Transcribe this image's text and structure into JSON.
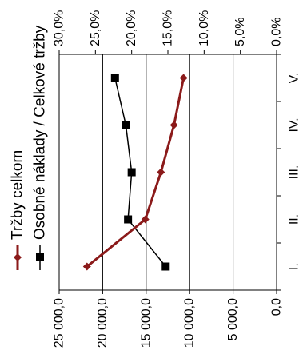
{
  "chart_data": {
    "type": "line",
    "orientation": "rotated-90-ccw",
    "categories": [
      "I.",
      "II.",
      "III.",
      "IV.",
      "V."
    ],
    "series": [
      {
        "name": "Tržby celkom",
        "axis": "primary",
        "color": "#8b1a1a",
        "marker": "diamond",
        "values": [
          21800,
          15100,
          13300,
          11800,
          10700
        ]
      },
      {
        "name": "Osobné náklady / Celkové tržby",
        "axis": "secondary",
        "color": "#000000",
        "marker": "square",
        "values": [
          15.3,
          20.5,
          20.0,
          20.8,
          22.3
        ]
      }
    ],
    "primary_axis": {
      "range": [
        0,
        25000
      ],
      "tick_labels": [
        "0,0",
        "5 000,0",
        "10 000,0",
        "15 000,0",
        "20 000,0",
        "25 000,0"
      ]
    },
    "secondary_axis": {
      "range": [
        0,
        30
      ],
      "tick_labels": [
        "0,0%",
        "5,0%",
        "10,0%",
        "15,0%",
        "20,0%",
        "25,0%",
        "30,0%"
      ]
    },
    "gridlines": true,
    "legend_position": "left"
  }
}
